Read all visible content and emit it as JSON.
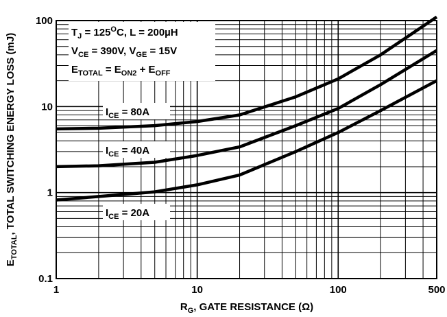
{
  "chart_data": {
    "type": "line",
    "x_scale": "log",
    "y_scale": "log",
    "xlim": [
      1,
      500
    ],
    "ylim": [
      0.1,
      100
    ],
    "grid": true,
    "xlabel": {
      "main": "R",
      "sub": "G",
      "rest": ", GATE RESISTANCE (Ω)"
    },
    "ylabel": {
      "main": "E",
      "sub": "TOTAL",
      "rest": ", TOTAL SWITCHING ENERGY LOSS (mJ)"
    },
    "x_ticks": [
      {
        "value": 1,
        "label": "1"
      },
      {
        "value": 10,
        "label": "10"
      },
      {
        "value": 100,
        "label": "100"
      },
      {
        "value": 500,
        "label": "500"
      }
    ],
    "y_ticks": [
      {
        "value": 100,
        "label": "100"
      },
      {
        "value": 10,
        "label": "10"
      },
      {
        "value": 1,
        "label": "1"
      },
      {
        "value": 0.1,
        "label": "0.1"
      }
    ],
    "conditions": {
      "line1": {
        "p1": "T",
        "s1": "J",
        "p2": " = 125",
        "sup": "O",
        "p3": "C, L = 200µH"
      },
      "line2": {
        "p1": "V",
        "s1": "CE",
        "p2": " = 390V, V",
        "s2": "GE",
        "p3": " = 15V"
      },
      "line3": {
        "p1": "E",
        "s1": "TOTAL",
        "p2": " = E",
        "s2": "ON2",
        "p3": " + E",
        "s3": "OFF"
      }
    },
    "series": [
      {
        "name": {
          "main": "I",
          "sub": "CE",
          "rest": " = 80A"
        },
        "points": [
          [
            1,
            5.5
          ],
          [
            2,
            5.6
          ],
          [
            5,
            6.0
          ],
          [
            10,
            6.7
          ],
          [
            20,
            8.0
          ],
          [
            50,
            13.0
          ],
          [
            100,
            21.0
          ],
          [
            200,
            40.0
          ],
          [
            500,
            110.0
          ]
        ]
      },
      {
        "name": {
          "main": "I",
          "sub": "CE",
          "rest": " = 40A"
        },
        "points": [
          [
            1,
            2.0
          ],
          [
            2,
            2.05
          ],
          [
            5,
            2.25
          ],
          [
            10,
            2.7
          ],
          [
            20,
            3.4
          ],
          [
            50,
            6.0
          ],
          [
            100,
            9.5
          ],
          [
            200,
            18.0
          ],
          [
            500,
            45.0
          ]
        ]
      },
      {
        "name": {
          "main": "I",
          "sub": "CE",
          "rest": " = 20A"
        },
        "points": [
          [
            1,
            0.82
          ],
          [
            2,
            0.9
          ],
          [
            5,
            1.02
          ],
          [
            10,
            1.23
          ],
          [
            20,
            1.6
          ],
          [
            50,
            3.0
          ],
          [
            100,
            5.0
          ],
          [
            200,
            9.0
          ],
          [
            500,
            20.0
          ]
        ]
      }
    ]
  }
}
